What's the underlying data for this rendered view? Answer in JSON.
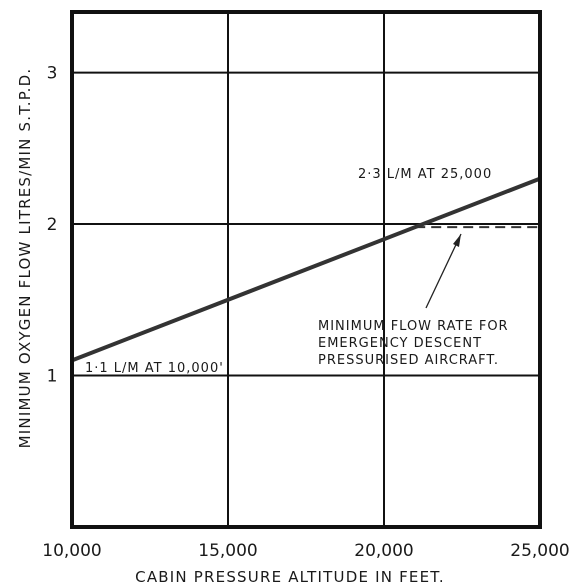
{
  "chart_data": {
    "type": "line",
    "xlabel": "CABIN PRESSURE ALTITUDE IN FEET.",
    "ylabel": "MINIMUM OXYGEN FLOW LITRES/MIN S.T.P.D.",
    "xlim": [
      10000,
      25000
    ],
    "ylim": [
      0,
      3.4
    ],
    "x_ticks": [
      10000,
      15000,
      20000,
      25000
    ],
    "x_tick_labels": [
      "10,000",
      "15,000",
      "20,000",
      "25,000"
    ],
    "y_ticks": [
      1,
      2,
      3
    ],
    "y_tick_labels": [
      "1",
      "2",
      "3"
    ],
    "grid": true,
    "series": [
      {
        "x": [
          10000,
          25000
        ],
        "y": [
          1.1,
          2.3
        ],
        "style": "solid"
      },
      {
        "x": [
          21000,
          25000
        ],
        "y": [
          1.98,
          1.98
        ],
        "style": "dashed"
      }
    ],
    "annotations": [
      {
        "text": "2·3 L/M AT 25,000"
      },
      {
        "text": "1·1 L/M AT 10,000'"
      },
      {
        "lines": [
          "MINIMUM FLOW RATE FOR",
          "EMERGENCY DESCENT",
          "PRESSURISED AIRCRAFT."
        ]
      }
    ],
    "colors": {
      "line": "#333333",
      "grid": "#111111",
      "text": "#1a1a1a"
    }
  }
}
